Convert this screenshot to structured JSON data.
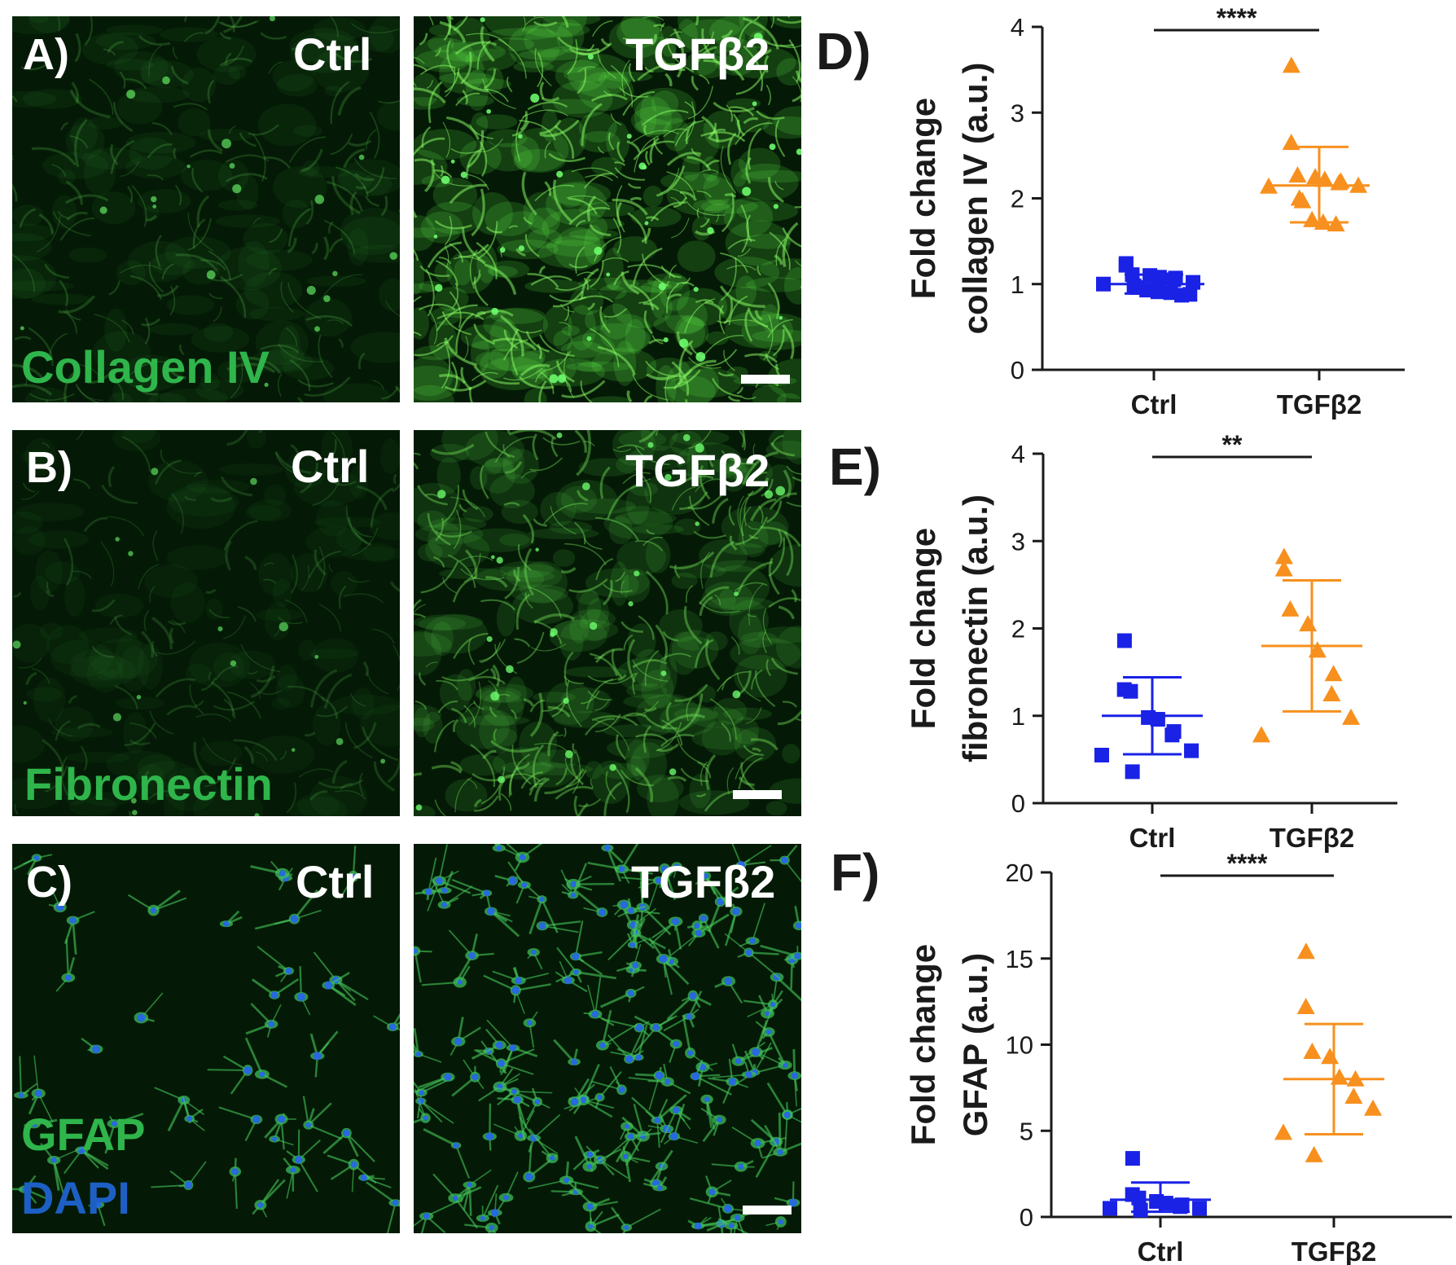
{
  "panels": {
    "A": {
      "label": "A)",
      "stain": "Collagen IV",
      "ctrl": "Ctrl",
      "treat": "TGFβ2"
    },
    "B": {
      "label": "B)",
      "stain": "Fibronectin",
      "ctrl": "Ctrl",
      "treat": "TGFβ2"
    },
    "C": {
      "label": "C)",
      "stain": "GFAP",
      "stain2": "DAPI",
      "ctrl": "Ctrl",
      "treat": "TGFβ2"
    }
  },
  "colors": {
    "ctrl": "#1a22e6",
    "treat": "#f7901e",
    "green_stain": "#2fb54b",
    "dapi": "#1d5fc4",
    "axis": "#1a1a1a"
  },
  "chart_data": [
    {
      "panel": "D)",
      "type": "scatter",
      "ylabel_line1": "Fold change",
      "ylabel_line2": "collagen IV (a.u.)",
      "categories": [
        "Ctrl",
        "TGFβ2"
      ],
      "ylim": [
        0,
        4
      ],
      "yticks": [
        "0",
        "1",
        "2",
        "3",
        "4"
      ],
      "significance": "****",
      "series": [
        {
          "marker": "square",
          "mean": 1.0,
          "sd_low": 0.89,
          "sd_high": 1.11,
          "values": [
            1.24,
            1.22,
            1.11,
            1.1,
            1.08,
            1.07,
            1.05,
            1.02,
            1.0,
            0.98,
            0.96,
            0.93,
            0.91,
            0.9,
            0.88,
            0.87
          ]
        },
        {
          "marker": "triangle",
          "mean": 2.15,
          "sd_low": 1.72,
          "sd_high": 2.6,
          "values": [
            3.55,
            2.65,
            2.27,
            2.25,
            2.22,
            2.2,
            2.18,
            2.15,
            2.14,
            2.0,
            1.97,
            1.75,
            1.72,
            1.7
          ]
        }
      ]
    },
    {
      "panel": "E)",
      "type": "scatter",
      "ylabel_line1": "Fold change",
      "ylabel_line2": "fibronectin (a.u.)",
      "categories": [
        "Ctrl",
        "TGFβ2"
      ],
      "ylim": [
        0,
        4
      ],
      "yticks": [
        "0",
        "1",
        "2",
        "3",
        "4"
      ],
      "significance": "**",
      "series": [
        {
          "marker": "square",
          "mean": 1.0,
          "sd_low": 0.56,
          "sd_high": 1.44,
          "values": [
            1.86,
            1.3,
            1.28,
            0.98,
            0.96,
            0.82,
            0.78,
            0.6,
            0.55,
            0.36
          ]
        },
        {
          "marker": "triangle",
          "mean": 1.8,
          "sd_low": 1.05,
          "sd_high": 2.55,
          "values": [
            2.82,
            2.68,
            2.22,
            2.05,
            1.75,
            1.48,
            1.25,
            0.98,
            0.78
          ]
        }
      ]
    },
    {
      "panel": "F)",
      "type": "scatter",
      "ylabel_line1": "Fold change",
      "ylabel_line2": "GFAP (a.u.)",
      "categories": [
        "Ctrl",
        "TGFβ2"
      ],
      "ylim": [
        0,
        20
      ],
      "yticks": [
        "0",
        "5",
        "10",
        "15",
        "20"
      ],
      "significance": "****",
      "series": [
        {
          "marker": "square",
          "mean": 1.0,
          "sd_low": 0.3,
          "sd_high": 2.0,
          "values": [
            3.4,
            1.3,
            1.1,
            0.9,
            0.8,
            0.7,
            0.6,
            0.5,
            0.5,
            0.4
          ]
        },
        {
          "marker": "triangle",
          "mean": 8.0,
          "sd_low": 4.8,
          "sd_high": 11.2,
          "values": [
            15.4,
            12.2,
            9.6,
            9.3,
            8.1,
            8.0,
            7.0,
            6.3,
            4.9,
            3.6
          ]
        }
      ]
    }
  ]
}
